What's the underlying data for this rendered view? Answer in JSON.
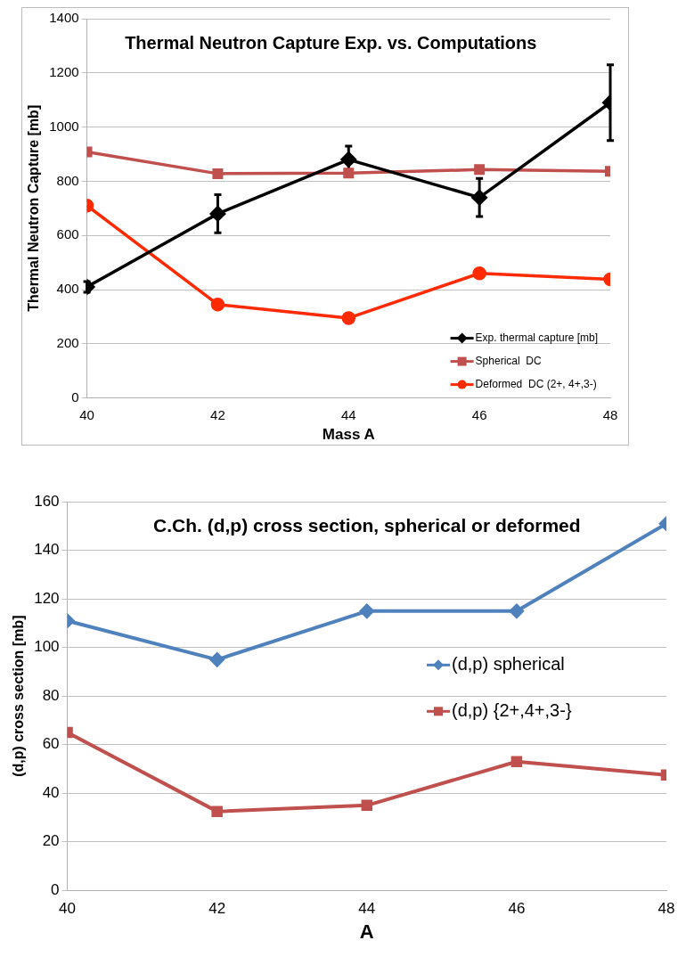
{
  "chart_data": [
    {
      "type": "line",
      "title": "Thermal Neutron Capture Exp. vs. Computations",
      "xlabel": "Mass A",
      "ylabel": "Thermal Neutron Capture [mb]",
      "x": [
        40,
        42,
        44,
        46,
        48
      ],
      "xlim": [
        40,
        48
      ],
      "xticks": [
        40,
        42,
        44,
        46,
        48
      ],
      "ylim": [
        0,
        1400
      ],
      "yticks": [
        0,
        200,
        400,
        600,
        800,
        1000,
        1200,
        1400
      ],
      "grid": "y",
      "legend": "bottom right",
      "series": [
        {
          "name": "Exp. thermal capture [mb]",
          "color": "#000000",
          "marker": "diamond",
          "values": [
            410,
            680,
            880,
            740,
            1090
          ],
          "errors": [
            20,
            70,
            50,
            70,
            140
          ]
        },
        {
          "name": "Spherical  DC",
          "color": "#c0504d",
          "marker": "square",
          "values": [
            908,
            828,
            830,
            843,
            837
          ]
        },
        {
          "name": "Deformed  DC (2+, 4+,3-)",
          "color": "#ff2a00",
          "marker": "circle",
          "values": [
            710,
            345,
            295,
            460,
            438
          ]
        }
      ]
    },
    {
      "type": "line",
      "title": "C.Ch. (d,p) cross section, spherical or deformed",
      "xlabel": "A",
      "ylabel": "(d,p) cross section [mb]",
      "x": [
        40,
        42,
        44,
        46,
        48
      ],
      "xlim": [
        40,
        48
      ],
      "xticks": [
        40,
        42,
        44,
        46,
        48
      ],
      "ylim": [
        0,
        160
      ],
      "yticks": [
        0,
        20,
        40,
        60,
        80,
        100,
        120,
        140,
        160
      ],
      "grid": "y",
      "legend": "right",
      "series": [
        {
          "name": "(d,p) spherical",
          "color": "#4f81bd",
          "marker": "diamond",
          "values": [
            111,
            95,
            115,
            115,
            151
          ]
        },
        {
          "name": "(d,p) {2+,4+,3-}",
          "color": "#c0504d",
          "marker": "square",
          "values": [
            65,
            32.5,
            35,
            53,
            47.5
          ]
        }
      ]
    }
  ]
}
